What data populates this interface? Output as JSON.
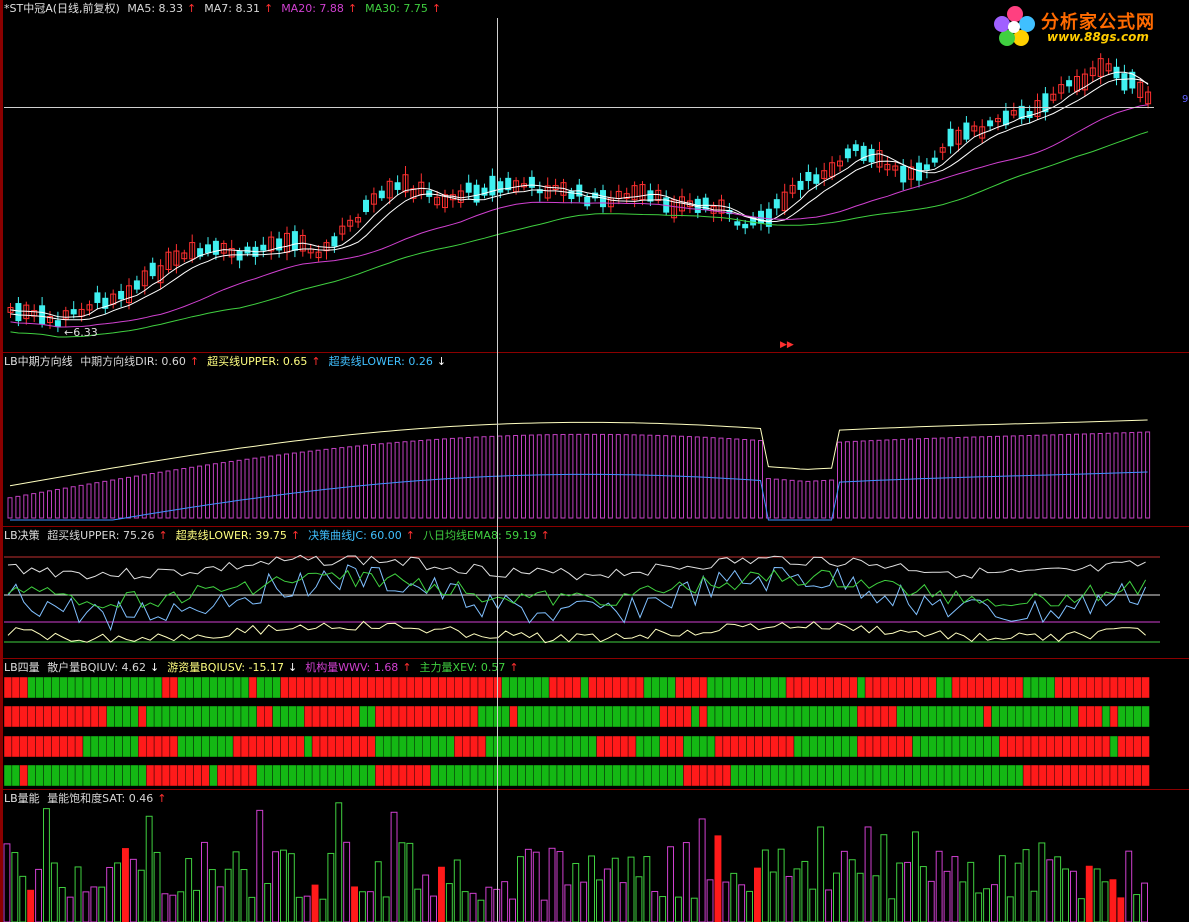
{
  "panels": {
    "main": {
      "title": "*ST中冠A(日线,前复权)",
      "items": [
        {
          "label": "MA5: 8.33",
          "arrow": "↑",
          "color": "#d8d8d8"
        },
        {
          "label": "MA7: 8.31",
          "arrow": "↑",
          "color": "#d8d8d8"
        },
        {
          "label": "MA20: 7.88",
          "arrow": "↑",
          "color": "#d040d0"
        },
        {
          "label": "MA30: 7.75",
          "arrow": "↑",
          "color": "#40d040"
        }
      ],
      "low_label": "←6.33"
    },
    "dir": {
      "title": "LB中期方向线",
      "items": [
        {
          "label": "中期方向线DIR: 0.60",
          "arrow": "↑",
          "color": "#d8d8d8"
        },
        {
          "label": "超买线UPPER: 0.65",
          "arrow": "↑",
          "color": "#ffff80"
        },
        {
          "label": "超卖线LOWER: 0.26",
          "arrow": "↓",
          "color": "#40c0ff"
        }
      ]
    },
    "jc": {
      "title": "LB决策",
      "items": [
        {
          "label": "超买线UPPER: 75.26",
          "arrow": "↑",
          "color": "#d8d8d8"
        },
        {
          "label": "超卖线LOWER: 39.75",
          "arrow": "↑",
          "color": "#ffff80"
        },
        {
          "label": "决策曲线JC: 60.00",
          "arrow": "↑",
          "color": "#40c0ff"
        },
        {
          "label": "八日均线EMA8: 59.19",
          "arrow": "↑",
          "color": "#40d040"
        }
      ]
    },
    "four": {
      "title": "LB四量",
      "items": [
        {
          "label": "散户量BQIUV: 4.62",
          "arrow": "↓",
          "color": "#d8d8d8"
        },
        {
          "label": "游资量BQIUSV: -15.17",
          "arrow": "↓",
          "color": "#ffff80"
        },
        {
          "label": "机构量WWV: 1.68",
          "arrow": "↑",
          "color": "#d040d0"
        },
        {
          "label": "主力量XEV: 0.57",
          "arrow": "↑",
          "color": "#40d040"
        }
      ]
    },
    "sat": {
      "title": "LB量能",
      "items": [
        {
          "label": "量能饱和度SAT: 0.46",
          "arrow": "↑",
          "color": "#d8d8d8"
        }
      ]
    }
  },
  "logo": {
    "text": "分析家公式网",
    "url_text": "www.88gs.com"
  },
  "colors": {
    "up": "#ff3030",
    "down": "#40f0f0",
    "ma5": "#ffffff",
    "ma20": "#d040d0",
    "ma30": "#40d040",
    "panel_border": "#8b0000"
  }
}
